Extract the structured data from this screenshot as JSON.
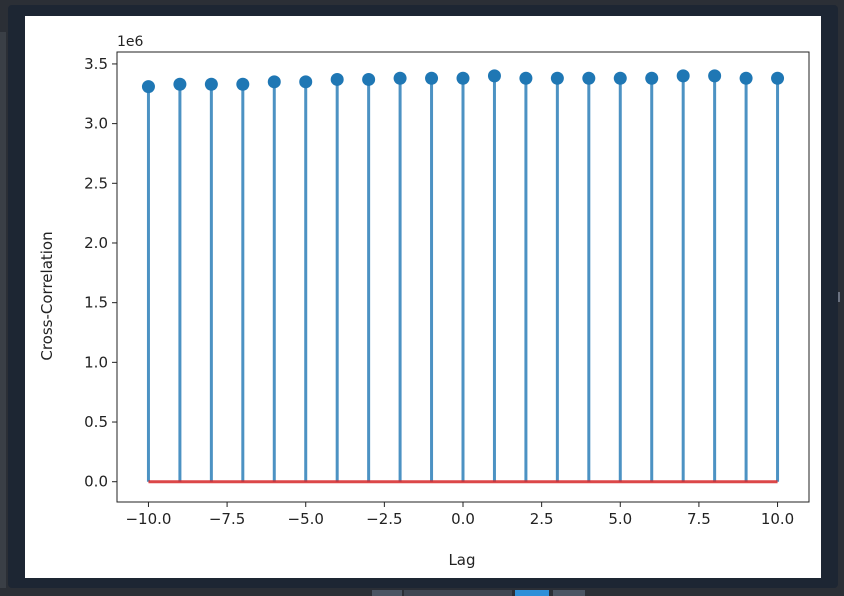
{
  "chart_data": {
    "type": "stem",
    "x": [
      -10,
      -9,
      -8,
      -7,
      -6,
      -5,
      -4,
      -3,
      -2,
      -1,
      0,
      1,
      2,
      3,
      4,
      5,
      6,
      7,
      8,
      9,
      10
    ],
    "y": [
      3310000.0,
      3330000.0,
      3330000.0,
      3330000.0,
      3350000.0,
      3350000.0,
      3370000.0,
      3370000.0,
      3380000.0,
      3380000.0,
      3380000.0,
      3400000.0,
      3380000.0,
      3380000.0,
      3380000.0,
      3380000.0,
      3380000.0,
      3400000.0,
      3400000.0,
      3380000.0,
      3380000.0
    ],
    "xlabel": "Lag",
    "ylabel": "Cross-Correlation",
    "offset_label": "1e6",
    "xlim": [
      -11,
      11
    ],
    "ylim": [
      -0.17,
      3.6
    ],
    "xticks": [
      -10,
      -7.5,
      -5,
      -2.5,
      0,
      2.5,
      5,
      7.5,
      10
    ],
    "xtick_labels": [
      "−10.0",
      "−7.5",
      "−5.0",
      "−2.5",
      "0.0",
      "2.5",
      "5.0",
      "7.5",
      "10.0"
    ],
    "yticks": [
      0,
      0.5,
      1.0,
      1.5,
      2.0,
      2.5,
      3.0,
      3.5
    ],
    "ytick_labels": [
      "0.0",
      "0.5",
      "1.0",
      "1.5",
      "2.0",
      "2.5",
      "3.0",
      "3.5"
    ],
    "baseline": 0,
    "colors": {
      "stem": "#1f77b4",
      "baseline": "#d62728"
    }
  }
}
